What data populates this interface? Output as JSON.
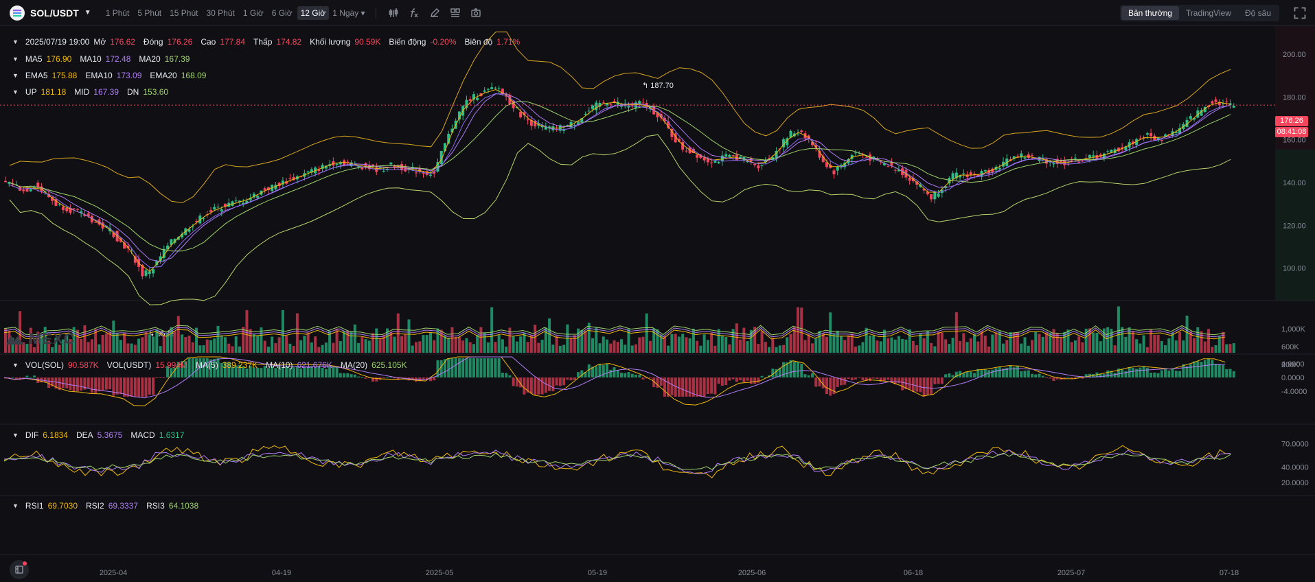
{
  "toolbar": {
    "symbol": "SOL/USDT",
    "intervals": [
      "1 Phút",
      "5 Phút",
      "15 Phút",
      "30 Phút",
      "1 Giờ",
      "6 Giờ",
      "12 Giờ"
    ],
    "active_interval": "12 Giờ",
    "more_interval": "1 Ngày",
    "icons": [
      "indicator-bars-icon",
      "function-icon",
      "pencil-icon",
      "layout-grid-icon",
      "camera-icon"
    ],
    "views": [
      "Bản thường",
      "TradingView",
      "Độ sâu"
    ],
    "active_view": "Bản thường"
  },
  "ohlc": {
    "date": "2025/07/19 19:00",
    "open_label": "Mở",
    "open": "176.62",
    "close_label": "Đóng",
    "close": "176.26",
    "high_label": "Cao",
    "high": "177.84",
    "low_label": "Thấp",
    "low": "174.82",
    "volume_label": "Khối lượng",
    "volume": "90.59K",
    "change_label": "Biến động",
    "change": "-0.20%",
    "amplitude_label": "Biên độ",
    "amplitude": "1.71%"
  },
  "ma": {
    "ma5_label": "MA5",
    "ma5": "176.90",
    "ma10_label": "MA10",
    "ma10": "172.48",
    "ma20_label": "MA20",
    "ma20": "167.39"
  },
  "ema": {
    "ema5_label": "EMA5",
    "ema5": "175.88",
    "ema10_label": "EMA10",
    "ema10": "173.09",
    "ema20_label": "EMA20",
    "ema20": "168.09"
  },
  "boll": {
    "up_label": "UP",
    "up": "181.18",
    "mid_label": "MID",
    "mid": "167.39",
    "dn_label": "DN",
    "dn": "153.60"
  },
  "vol": {
    "sol_label": "VOL(SOL)",
    "sol": "90.587K",
    "usdt_label": "VOL(USDT)",
    "usdt": "15.994M",
    "ma5_label": "MA(5)",
    "ma5": "389.237K",
    "ma10_label": "MA(10)",
    "ma10": "621.676K",
    "ma20_label": "MA(20)",
    "ma20": "625.105K"
  },
  "macd": {
    "dif_label": "DIF",
    "dif": "6.1834",
    "dea_label": "DEA",
    "dea": "5.3675",
    "macd_label": "MACD",
    "macd": "1.6317"
  },
  "rsi": {
    "rsi1_label": "RSI1",
    "rsi1": "69.7030",
    "rsi2_label": "RSI2",
    "rsi2": "69.3337",
    "rsi3_label": "RSI3",
    "rsi3": "64.1038"
  },
  "price_axis": [
    "200.00",
    "180.00",
    "160.00",
    "140.00",
    "120.00",
    "100.00"
  ],
  "vol_axis": [
    "1,000K",
    "600K",
    "200K"
  ],
  "macd_axis": [
    "4.0000",
    "0.0000",
    "-4.0000"
  ],
  "rsi_axis": [
    "70.0000",
    "40.0000",
    "20.0000"
  ],
  "time_axis": [
    "2025-04",
    "04-19",
    "2025-05",
    "05-19",
    "2025-06",
    "06-18",
    "2025-07",
    "07-18"
  ],
  "current_price": "176.26",
  "countdown": "08:41:08",
  "max_marker": "187.70",
  "min_marker": "95.28",
  "watermark": "MEXC",
  "colors": {
    "up": "#2ebd85",
    "down": "#f6465d",
    "ma5": "#f0b90b",
    "ma10": "#b07cf7",
    "ma20": "#9ed36a"
  },
  "chart_data": {
    "type": "candlestick",
    "price_range": [
      88,
      210
    ],
    "closes": [
      140,
      136,
      139,
      135,
      130,
      128,
      126,
      124,
      120,
      118,
      112,
      107,
      97,
      100,
      108,
      114,
      118,
      122,
      126,
      128,
      130,
      131,
      133,
      136,
      138,
      140,
      142,
      144,
      146,
      148,
      150,
      149,
      148,
      147,
      146,
      148,
      147,
      146,
      145,
      144,
      158,
      170,
      178,
      181,
      183,
      184,
      178,
      172,
      168,
      166,
      165,
      166,
      168,
      172,
      176,
      178,
      177,
      176,
      177,
      175,
      170,
      162,
      156,
      154,
      151,
      150,
      152,
      152,
      150,
      148,
      151,
      157,
      163,
      164,
      158,
      150,
      145,
      150,
      154,
      152,
      150,
      148,
      146,
      142,
      138,
      133,
      138,
      143,
      144,
      143,
      145,
      147,
      150,
      153,
      152,
      151,
      150,
      149,
      150,
      151,
      152,
      153,
      155,
      157,
      160,
      162,
      160,
      163,
      165,
      170,
      174,
      178,
      177,
      176.26
    ],
    "boll_up_path_hint": "upper band",
    "volume_hint": "per-bar volume"
  }
}
